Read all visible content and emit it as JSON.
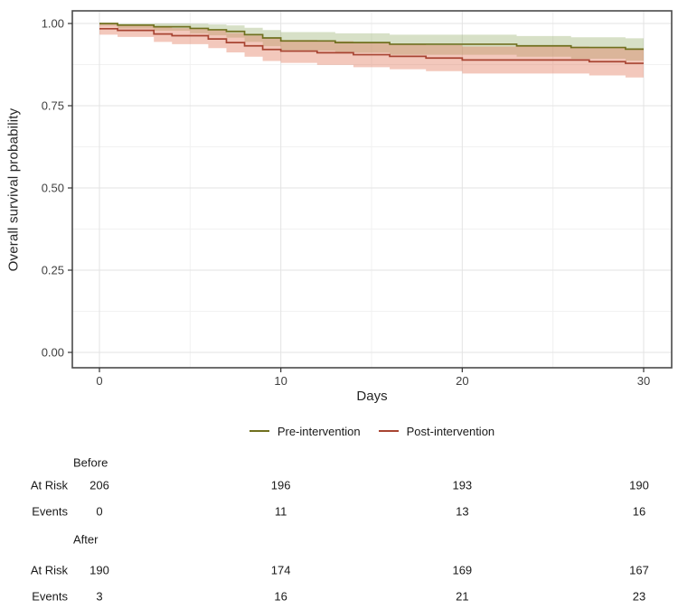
{
  "chart_data": {
    "type": "line",
    "subtype": "kaplan-meier-step",
    "title": "",
    "xlabel": "Days",
    "ylabel": "Overall survival probability",
    "xlim": [
      0,
      30
    ],
    "ylim": [
      0.0,
      1.0
    ],
    "grid": "on",
    "legend_position": "bottom",
    "x_ticks": [
      0,
      10,
      20,
      30
    ],
    "x_minor_ticks": [
      5,
      15,
      25
    ],
    "y_ticks": [
      {
        "v": 1.0,
        "label": "1.00"
      },
      {
        "v": 0.75,
        "label": "0.75"
      },
      {
        "v": 0.5,
        "label": "0.50"
      },
      {
        "v": 0.25,
        "label": "0.25"
      },
      {
        "v": 0.0,
        "label": "0.00"
      }
    ],
    "y_minor_ticks": [
      0.875,
      0.625,
      0.375,
      0.125
    ],
    "end_day": 30,
    "series": [
      {
        "name": "Pre-intervention",
        "color": "#70701f",
        "band_color": "rgba(140,165,95,0.35)",
        "steps": [
          {
            "t": 0,
            "s": 1.0,
            "lo": 0.993,
            "hi": 1.0
          },
          {
            "t": 1,
            "s": 0.995,
            "lo": 0.985,
            "hi": 1.0
          },
          {
            "t": 3,
            "s": 0.99,
            "lo": 0.978,
            "hi": 1.0
          },
          {
            "t": 5,
            "s": 0.985,
            "lo": 0.97,
            "hi": 0.999
          },
          {
            "t": 6,
            "s": 0.981,
            "lo": 0.964,
            "hi": 0.997
          },
          {
            "t": 7,
            "s": 0.976,
            "lo": 0.957,
            "hi": 0.994
          },
          {
            "t": 8,
            "s": 0.966,
            "lo": 0.944,
            "hi": 0.987
          },
          {
            "t": 9,
            "s": 0.956,
            "lo": 0.931,
            "hi": 0.98
          },
          {
            "t": 10,
            "s": 0.947,
            "lo": 0.917,
            "hi": 0.974
          },
          {
            "t": 13,
            "s": 0.942,
            "lo": 0.911,
            "hi": 0.97
          },
          {
            "t": 16,
            "s": 0.937,
            "lo": 0.905,
            "hi": 0.966
          },
          {
            "t": 23,
            "s": 0.932,
            "lo": 0.899,
            "hi": 0.962
          },
          {
            "t": 26,
            "s": 0.927,
            "lo": 0.893,
            "hi": 0.958
          },
          {
            "t": 29,
            "s": 0.922,
            "lo": 0.887,
            "hi": 0.955
          }
        ]
      },
      {
        "name": "Post-intervention",
        "color": "#a84432",
        "band_color": "rgba(225,118,88,0.40)",
        "steps": [
          {
            "t": 0,
            "s": 0.984,
            "lo": 0.966,
            "hi": 0.999
          },
          {
            "t": 1,
            "s": 0.979,
            "lo": 0.959,
            "hi": 0.996
          },
          {
            "t": 3,
            "s": 0.968,
            "lo": 0.944,
            "hi": 0.99
          },
          {
            "t": 4,
            "s": 0.963,
            "lo": 0.937,
            "hi": 0.986
          },
          {
            "t": 6,
            "s": 0.953,
            "lo": 0.925,
            "hi": 0.979
          },
          {
            "t": 7,
            "s": 0.942,
            "lo": 0.912,
            "hi": 0.971
          },
          {
            "t": 8,
            "s": 0.932,
            "lo": 0.899,
            "hi": 0.963
          },
          {
            "t": 9,
            "s": 0.921,
            "lo": 0.886,
            "hi": 0.954
          },
          {
            "t": 10,
            "s": 0.916,
            "lo": 0.88,
            "hi": 0.95
          },
          {
            "t": 12,
            "s": 0.911,
            "lo": 0.874,
            "hi": 0.946
          },
          {
            "t": 14,
            "s": 0.905,
            "lo": 0.867,
            "hi": 0.942
          },
          {
            "t": 16,
            "s": 0.9,
            "lo": 0.861,
            "hi": 0.938
          },
          {
            "t": 18,
            "s": 0.895,
            "lo": 0.855,
            "hi": 0.934
          },
          {
            "t": 20,
            "s": 0.889,
            "lo": 0.848,
            "hi": 0.93
          },
          {
            "t": 27,
            "s": 0.884,
            "lo": 0.842,
            "hi": 0.926
          },
          {
            "t": 29,
            "s": 0.879,
            "lo": 0.836,
            "hi": 0.922
          }
        ]
      }
    ]
  },
  "risk_table": {
    "columns_days": [
      0,
      10,
      20,
      30
    ],
    "groups": [
      {
        "header": "Before",
        "rows": [
          {
            "label": "At Risk",
            "values": [
              "206",
              "196",
              "193",
              "190"
            ]
          },
          {
            "label": "Events",
            "values": [
              "0",
              "11",
              "13",
              "16"
            ]
          }
        ]
      },
      {
        "header": "After",
        "rows": [
          {
            "label": "At Risk",
            "values": [
              "190",
              "174",
              "169",
              "167"
            ]
          },
          {
            "label": "Events",
            "values": [
              "3",
              "16",
              "21",
              "23"
            ]
          }
        ]
      }
    ]
  },
  "colors": {
    "panel_border": "#4a4a4a",
    "grid_major": "#e3e3e3",
    "grid_minor": "#f1f1f1",
    "tick": "#333333",
    "tick_label": "#404040"
  }
}
